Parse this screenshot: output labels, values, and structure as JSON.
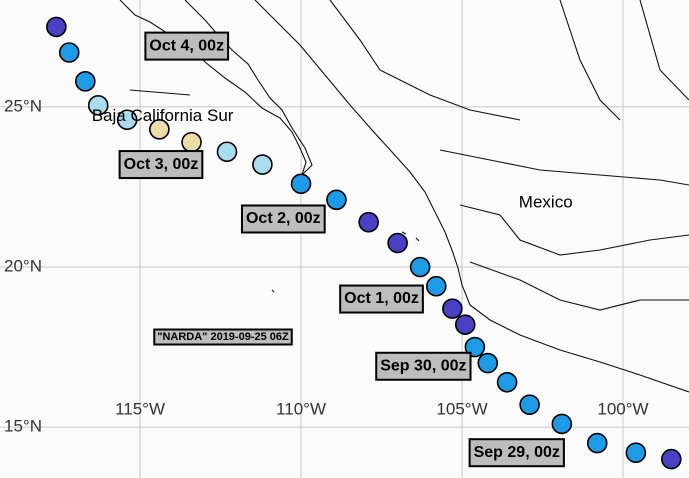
{
  "map": {
    "lon_range": [
      -119.35,
      -97.95
    ],
    "lat_range": [
      13.41,
      28.34
    ],
    "lon_ticks": [
      {
        "value": -115,
        "label": "115°W"
      },
      {
        "value": -110,
        "label": "110°W"
      },
      {
        "value": -105,
        "label": "105°W"
      },
      {
        "value": -100,
        "label": "100°W"
      }
    ],
    "lat_ticks": [
      {
        "value": 15,
        "label": "15°N"
      },
      {
        "value": 20,
        "label": "20°N"
      },
      {
        "value": 25,
        "label": "25°N"
      }
    ],
    "places": [
      {
        "name": "Baja California Sur",
        "lon": -114.3,
        "lat": 24.7
      },
      {
        "name": "Mexico",
        "lon": -102.4,
        "lat": 22.0
      }
    ],
    "storm_label": "\"NARDA\" 2019-09-25 06Z",
    "track": [
      {
        "lon": -117.6,
        "lat": 27.5,
        "color": "#4b40c4"
      },
      {
        "lon": -117.2,
        "lat": 26.7,
        "color": "#1e9be6"
      },
      {
        "lon": -116.7,
        "lat": 25.8,
        "color": "#1e9be6"
      },
      {
        "lon": -116.3,
        "lat": 25.05,
        "color": "#a8dcee"
      },
      {
        "lon": -115.4,
        "lat": 24.6,
        "color": "#a8dcee"
      },
      {
        "lon": -114.4,
        "lat": 24.3,
        "color": "#ecdcaa"
      },
      {
        "lon": -113.4,
        "lat": 23.9,
        "color": "#ecdcaa"
      },
      {
        "lon": -112.3,
        "lat": 23.6,
        "color": "#a8dcee"
      },
      {
        "lon": -111.2,
        "lat": 23.2,
        "color": "#a8dcee"
      },
      {
        "lon": -110.0,
        "lat": 22.6,
        "color": "#1e9be6"
      },
      {
        "lon": -108.9,
        "lat": 22.1,
        "color": "#1e9be6"
      },
      {
        "lon": -107.9,
        "lat": 21.4,
        "color": "#4b40c4"
      },
      {
        "lon": -107.0,
        "lat": 20.75,
        "color": "#4b40c4"
      },
      {
        "lon": -106.3,
        "lat": 20.0,
        "color": "#1e9be6"
      },
      {
        "lon": -105.8,
        "lat": 19.4,
        "color": "#1e9be6"
      },
      {
        "lon": -105.3,
        "lat": 18.7,
        "color": "#4b40c4"
      },
      {
        "lon": -104.9,
        "lat": 18.2,
        "color": "#4b40c4"
      },
      {
        "lon": -104.6,
        "lat": 17.5,
        "color": "#1e9be6"
      },
      {
        "lon": -104.2,
        "lat": 17.0,
        "color": "#1e9be6"
      },
      {
        "lon": -103.6,
        "lat": 16.4,
        "color": "#1e9be6"
      },
      {
        "lon": -102.9,
        "lat": 15.7,
        "color": "#1e9be6"
      },
      {
        "lon": -101.9,
        "lat": 15.1,
        "color": "#1e9be6"
      },
      {
        "lon": -100.8,
        "lat": 14.5,
        "color": "#1e9be6"
      },
      {
        "lon": -99.6,
        "lat": 14.2,
        "color": "#1e9be6"
      },
      {
        "lon": -98.5,
        "lat": 14.0,
        "color": "#4b40c4"
      }
    ],
    "time_labels": [
      {
        "text": "Oct 4, 00z",
        "lon": -113.55,
        "lat": 26.9
      },
      {
        "text": "Oct 3, 00z",
        "lon": -114.35,
        "lat": 23.2
      },
      {
        "text": "Oct 2, 00z",
        "lon": -110.55,
        "lat": 21.5
      },
      {
        "text": "Oct 1, 00z",
        "lon": -107.5,
        "lat": 19.0
      },
      {
        "text": "Sep 30, 00z",
        "lon": -106.2,
        "lat": 16.9
      },
      {
        "text": "Sep 29, 00z",
        "lon": -103.3,
        "lat": 14.2
      }
    ]
  }
}
